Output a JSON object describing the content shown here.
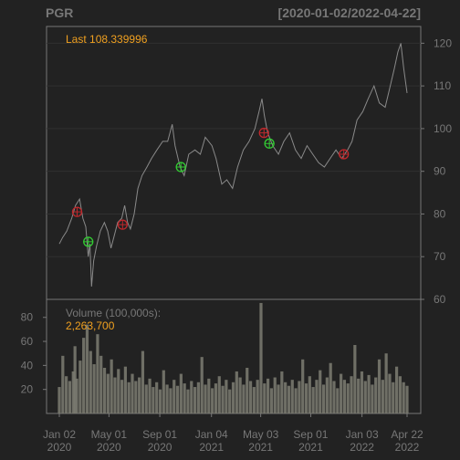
{
  "chart_data": [
    {
      "type": "line",
      "title": "PGR",
      "date_range": "[2020-01-02/2022-04-22]",
      "last_label": "Last 108.339996",
      "colors": {
        "background": "#222222",
        "title": "#777777",
        "axis": "#777777",
        "grid": "#303030",
        "price": "#8a8a8a",
        "last": "#f0a020",
        "buy": "#33cc33",
        "sell": "#c0282c"
      },
      "ylim": [
        60,
        122
      ],
      "yticks": [
        60,
        70,
        80,
        90,
        100,
        110,
        120
      ],
      "xticks": [
        {
          "date": "2020-01-02",
          "l1": "Jan 02",
          "l2": "2020"
        },
        {
          "date": "2020-05-01",
          "l1": "May 01",
          "l2": "2020"
        },
        {
          "date": "2020-09-01",
          "l1": "Sep 01",
          "l2": "2020"
        },
        {
          "date": "2021-01-04",
          "l1": "Jan 04",
          "l2": "2021"
        },
        {
          "date": "2021-05-03",
          "l1": "May 03",
          "l2": "2021"
        },
        {
          "date": "2021-09-01",
          "l1": "Sep 01",
          "l2": "2021"
        },
        {
          "date": "2022-01-03",
          "l1": "Jan 03",
          "l2": "2022"
        },
        {
          "date": "2022-04-22",
          "l1": "Apr 22",
          "l2": "2022"
        }
      ],
      "series": [
        {
          "values": [
            [
              "2020-01-02",
              73
            ],
            [
              "2020-01-10",
              74.5
            ],
            [
              "2020-01-20",
              76
            ],
            [
              "2020-02-01",
              79
            ],
            [
              "2020-02-10",
              82
            ],
            [
              "2020-02-20",
              83.5
            ],
            [
              "2020-02-28",
              79
            ],
            [
              "2020-03-06",
              77
            ],
            [
              "2020-03-12",
              70
            ],
            [
              "2020-03-16",
              73
            ],
            [
              "2020-03-20",
              63
            ],
            [
              "2020-03-25",
              69
            ],
            [
              "2020-04-01",
              72.5
            ],
            [
              "2020-04-10",
              76
            ],
            [
              "2020-04-20",
              78
            ],
            [
              "2020-04-28",
              76
            ],
            [
              "2020-05-06",
              72
            ],
            [
              "2020-05-14",
              75
            ],
            [
              "2020-05-22",
              78
            ],
            [
              "2020-06-01",
              79
            ],
            [
              "2020-06-08",
              82
            ],
            [
              "2020-06-15",
              78
            ],
            [
              "2020-06-22",
              76.5
            ],
            [
              "2020-07-01",
              80
            ],
            [
              "2020-07-10",
              86
            ],
            [
              "2020-07-20",
              89
            ],
            [
              "2020-08-01",
              91
            ],
            [
              "2020-08-12",
              93
            ],
            [
              "2020-08-25",
              95
            ],
            [
              "2020-09-08",
              97
            ],
            [
              "2020-09-20",
              97
            ],
            [
              "2020-10-01",
              101
            ],
            [
              "2020-10-08",
              96
            ],
            [
              "2020-10-20",
              91
            ],
            [
              "2020-10-30",
              89
            ],
            [
              "2020-11-10",
              94
            ],
            [
              "2020-11-25",
              95
            ],
            [
              "2020-12-08",
              94
            ],
            [
              "2020-12-20",
              98
            ],
            [
              "2021-01-05",
              96
            ],
            [
              "2021-01-15",
              93
            ],
            [
              "2021-01-29",
              87
            ],
            [
              "2021-02-10",
              88
            ],
            [
              "2021-02-24",
              86
            ],
            [
              "2021-03-08",
              91
            ],
            [
              "2021-03-22",
              95
            ],
            [
              "2021-04-05",
              97
            ],
            [
              "2021-04-19",
              100
            ],
            [
              "2021-04-29",
              104
            ],
            [
              "2021-05-06",
              107
            ],
            [
              "2021-05-12",
              103
            ],
            [
              "2021-05-20",
              99
            ],
            [
              "2021-06-01",
              96
            ],
            [
              "2021-06-15",
              94
            ],
            [
              "2021-06-28",
              97
            ],
            [
              "2021-07-12",
              99
            ],
            [
              "2021-07-26",
              95
            ],
            [
              "2021-08-09",
              93
            ],
            [
              "2021-08-23",
              96
            ],
            [
              "2021-09-06",
              94
            ],
            [
              "2021-09-20",
              92
            ],
            [
              "2021-10-04",
              91
            ],
            [
              "2021-10-18",
              93
            ],
            [
              "2021-11-01",
              95
            ],
            [
              "2021-11-15",
              93
            ],
            [
              "2021-11-29",
              95
            ],
            [
              "2021-12-10",
              97
            ],
            [
              "2021-12-22",
              102
            ],
            [
              "2022-01-05",
              104
            ],
            [
              "2022-01-18",
              107
            ],
            [
              "2022-02-01",
              110
            ],
            [
              "2022-02-14",
              106
            ],
            [
              "2022-02-28",
              105
            ],
            [
              "2022-03-10",
              109
            ],
            [
              "2022-03-22",
              114
            ],
            [
              "2022-03-31",
              118
            ],
            [
              "2022-04-07",
              120
            ],
            [
              "2022-04-14",
              114
            ],
            [
              "2022-04-22",
              108.34
            ]
          ]
        }
      ],
      "markers": [
        {
          "date": "2020-02-14",
          "value": 80.5,
          "kind": "sell"
        },
        {
          "date": "2020-03-12",
          "value": 73.5,
          "kind": "buy"
        },
        {
          "date": "2020-06-03",
          "value": 77.5,
          "kind": "sell"
        },
        {
          "date": "2020-10-22",
          "value": 91,
          "kind": "buy"
        },
        {
          "date": "2021-05-11",
          "value": 99,
          "kind": "sell"
        },
        {
          "date": "2021-05-24",
          "value": 96.5,
          "kind": "buy"
        },
        {
          "date": "2021-11-20",
          "value": 94,
          "kind": "sell"
        }
      ]
    },
    {
      "type": "bar",
      "label": "Volume (100,000s):",
      "last_label": "2,263,700",
      "ylim": [
        0,
        95
      ],
      "yticks": [
        20,
        40,
        60,
        80
      ],
      "colors": {
        "volume": "#7d7d72"
      },
      "values": [
        [
          0.0,
          22
        ],
        [
          0.01,
          48
        ],
        [
          0.02,
          31
        ],
        [
          0.03,
          27
        ],
        [
          0.04,
          35
        ],
        [
          0.045,
          56
        ],
        [
          0.05,
          29
        ],
        [
          0.06,
          44
        ],
        [
          0.07,
          63
        ],
        [
          0.08,
          74
        ],
        [
          0.09,
          52
        ],
        [
          0.1,
          41
        ],
        [
          0.11,
          66
        ],
        [
          0.12,
          48
        ],
        [
          0.13,
          38
        ],
        [
          0.14,
          33
        ],
        [
          0.15,
          45
        ],
        [
          0.16,
          30
        ],
        [
          0.17,
          37
        ],
        [
          0.18,
          28
        ],
        [
          0.19,
          39
        ],
        [
          0.2,
          26
        ],
        [
          0.21,
          33
        ],
        [
          0.22,
          27
        ],
        [
          0.23,
          30
        ],
        [
          0.24,
          52
        ],
        [
          0.25,
          24
        ],
        [
          0.26,
          29
        ],
        [
          0.27,
          22
        ],
        [
          0.28,
          26
        ],
        [
          0.29,
          20
        ],
        [
          0.3,
          36
        ],
        [
          0.31,
          24
        ],
        [
          0.32,
          21
        ],
        [
          0.33,
          28
        ],
        [
          0.34,
          23
        ],
        [
          0.35,
          33
        ],
        [
          0.36,
          25
        ],
        [
          0.37,
          20
        ],
        [
          0.38,
          27
        ],
        [
          0.39,
          22
        ],
        [
          0.4,
          26
        ],
        [
          0.41,
          47
        ],
        [
          0.42,
          24
        ],
        [
          0.43,
          29
        ],
        [
          0.44,
          21
        ],
        [
          0.45,
          25
        ],
        [
          0.46,
          31
        ],
        [
          0.47,
          23
        ],
        [
          0.48,
          28
        ],
        [
          0.49,
          20
        ],
        [
          0.5,
          26
        ],
        [
          0.51,
          35
        ],
        [
          0.52,
          30
        ],
        [
          0.53,
          24
        ],
        [
          0.54,
          38
        ],
        [
          0.55,
          27
        ],
        [
          0.56,
          22
        ],
        [
          0.57,
          28
        ],
        [
          0.58,
          92
        ],
        [
          0.59,
          25
        ],
        [
          0.6,
          29
        ],
        [
          0.61,
          21
        ],
        [
          0.62,
          30
        ],
        [
          0.63,
          24
        ],
        [
          0.64,
          35
        ],
        [
          0.65,
          26
        ],
        [
          0.66,
          23
        ],
        [
          0.67,
          28
        ],
        [
          0.68,
          21
        ],
        [
          0.69,
          27
        ],
        [
          0.7,
          45
        ],
        [
          0.71,
          25
        ],
        [
          0.72,
          31
        ],
        [
          0.73,
          22
        ],
        [
          0.74,
          28
        ],
        [
          0.75,
          36
        ],
        [
          0.76,
          24
        ],
        [
          0.77,
          30
        ],
        [
          0.78,
          42
        ],
        [
          0.79,
          27
        ],
        [
          0.8,
          21
        ],
        [
          0.81,
          33
        ],
        [
          0.82,
          28
        ],
        [
          0.83,
          25
        ],
        [
          0.84,
          31
        ],
        [
          0.85,
          57
        ],
        [
          0.86,
          29
        ],
        [
          0.87,
          35
        ],
        [
          0.88,
          27
        ],
        [
          0.89,
          32
        ],
        [
          0.9,
          24
        ],
        [
          0.91,
          30
        ],
        [
          0.92,
          45
        ],
        [
          0.93,
          28
        ],
        [
          0.94,
          50
        ],
        [
          0.95,
          33
        ],
        [
          0.96,
          26
        ],
        [
          0.97,
          39
        ],
        [
          0.98,
          31
        ],
        [
          0.99,
          26
        ],
        [
          1.0,
          23
        ]
      ]
    }
  ]
}
